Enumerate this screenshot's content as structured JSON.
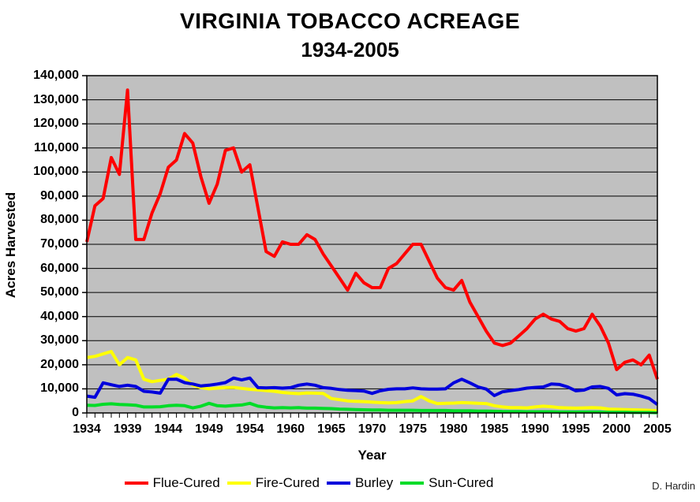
{
  "chart": {
    "title_line1": "VIRGINIA TOBACCO ACREAGE",
    "title_line2": "1934-2005",
    "credit": "D. Hardin"
  },
  "chart_data": {
    "type": "line",
    "title": "VIRGINIA TOBACCO ACREAGE 1934-2005",
    "xlabel": "Year",
    "ylabel": "Acres Harvested",
    "ylim": [
      0,
      140000
    ],
    "y_tick_step": 10000,
    "grid": "horizontal",
    "legend_position": "bottom",
    "plot_bg": "#C0C0C0",
    "grid_color": "#000000",
    "x_tick_labels": [
      "1934",
      "1939",
      "1944",
      "1949",
      "1954",
      "1960",
      "1965",
      "1970",
      "1975",
      "1980",
      "1985",
      "1990",
      "1995",
      "2000",
      "2005"
    ],
    "x_label_every": 5,
    "years": [
      1934,
      1935,
      1936,
      1937,
      1938,
      1939,
      1940,
      1941,
      1942,
      1943,
      1944,
      1945,
      1946,
      1947,
      1948,
      1949,
      1950,
      1951,
      1952,
      1953,
      1954,
      1955,
      1956,
      1957,
      1958,
      1960,
      1961,
      1962,
      1963,
      1964,
      1965,
      1966,
      1967,
      1968,
      1969,
      1970,
      1971,
      1972,
      1973,
      1974,
      1975,
      1976,
      1977,
      1978,
      1979,
      1980,
      1981,
      1982,
      1983,
      1984,
      1985,
      1986,
      1987,
      1988,
      1989,
      1990,
      1991,
      1992,
      1993,
      1994,
      1995,
      1996,
      1997,
      1998,
      1999,
      2000,
      2001,
      2002,
      2003,
      2004,
      2005
    ],
    "series": [
      {
        "name": "Flue-Cured",
        "color": "#FF0000",
        "values": [
          71000,
          86000,
          89000,
          106000,
          99000,
          134000,
          72000,
          72000,
          83000,
          91000,
          102000,
          105000,
          116000,
          112000,
          98000,
          87000,
          95000,
          109000,
          110000,
          100000,
          103000,
          85000,
          67000,
          65000,
          71000,
          70000,
          70000,
          74000,
          72000,
          66000,
          61000,
          56000,
          51000,
          58000,
          54000,
          52000,
          52000,
          60000,
          62000,
          66000,
          70000,
          70000,
          63000,
          56000,
          52000,
          51000,
          55000,
          46000,
          40000,
          34000,
          29000,
          28000,
          29000,
          32000,
          35000,
          39000,
          41000,
          39000,
          38000,
          35000,
          34000,
          35000,
          41000,
          36000,
          29000,
          18000,
          21000,
          22000,
          20000,
          24000,
          14000
        ]
      },
      {
        "name": "Fire-Cured",
        "color": "#FFFF00",
        "values": [
          23000,
          23500,
          24500,
          25500,
          20000,
          23000,
          22000,
          14000,
          13000,
          13500,
          14000,
          16000,
          14500,
          11500,
          10500,
          10000,
          10300,
          10500,
          10600,
          10200,
          9800,
          9600,
          9300,
          9000,
          8500,
          8200,
          8000,
          8300,
          8200,
          8100,
          6000,
          5500,
          5000,
          4800,
          4700,
          4500,
          4300,
          4200,
          4300,
          4700,
          5000,
          6800,
          5000,
          3900,
          4000,
          4100,
          4300,
          4200,
          4000,
          3900,
          3000,
          2500,
          2200,
          2200,
          2100,
          2500,
          2800,
          2600,
          2200,
          2100,
          2000,
          2100,
          2200,
          2100,
          1600,
          1500,
          1400,
          1300,
          1200,
          1100,
          900
        ]
      },
      {
        "name": "Burley",
        "color": "#0000DC",
        "values": [
          7000,
          6500,
          12500,
          11700,
          11000,
          11500,
          11000,
          9000,
          8700,
          8200,
          14000,
          14000,
          12600,
          12000,
          11200,
          11500,
          12000,
          12600,
          14500,
          13700,
          14500,
          10500,
          10400,
          10500,
          10300,
          10500,
          11500,
          12000,
          11500,
          10500,
          10200,
          9700,
          9400,
          9300,
          9100,
          8100,
          9200,
          9800,
          10000,
          10000,
          10400,
          10000,
          9900,
          9900,
          10000,
          12500,
          14000,
          12500,
          10800,
          9900,
          7200,
          8800,
          9300,
          9700,
          10300,
          10600,
          10800,
          12000,
          11800,
          10800,
          9200,
          9500,
          10800,
          11000,
          10200,
          7500,
          8000,
          7800,
          7000,
          6000,
          3500
        ]
      },
      {
        "name": "Sun-Cured",
        "color": "#00DC28",
        "values": [
          3200,
          3100,
          3600,
          3800,
          3500,
          3400,
          3200,
          2500,
          2500,
          2600,
          3000,
          3200,
          3000,
          2100,
          2800,
          4000,
          3000,
          2800,
          3100,
          3300,
          4000,
          2800,
          2400,
          2100,
          2200,
          2100,
          2200,
          2000,
          2000,
          1900,
          1800,
          1600,
          1500,
          1400,
          1300,
          1200,
          1200,
          1100,
          1100,
          1100,
          1100,
          1000,
          1000,
          1000,
          1000,
          900,
          900,
          900,
          800,
          800,
          700,
          600,
          600,
          600,
          500,
          500,
          500,
          500,
          400,
          400,
          400,
          400,
          400,
          400,
          300,
          300,
          300,
          200,
          200,
          200,
          100
        ]
      }
    ]
  }
}
